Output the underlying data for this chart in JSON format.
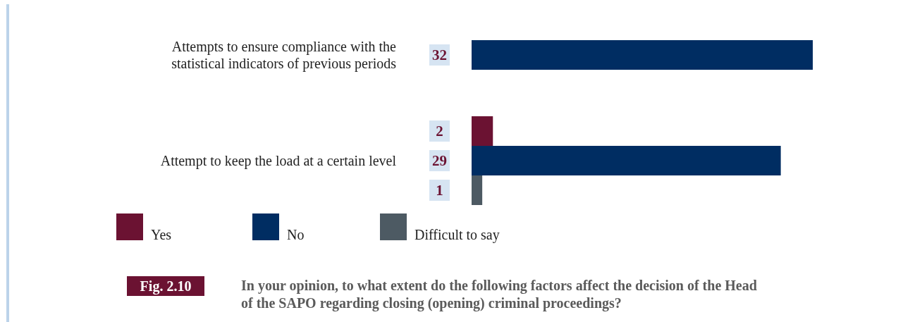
{
  "chart_data": {
    "type": "bar",
    "orientation": "horizontal",
    "title": "In your opinion, to what extent do the following factors affect the decision of the Head of the SAPO regarding closing (opening) criminal proceedings?",
    "annotations": [
      "Fig. 2.10"
    ],
    "categories": [
      "Attempts to ensure compliance with the statistical indicators of previous periods",
      "Attempt to keep the load at a certain level"
    ],
    "series": [
      {
        "name": "Yes",
        "color": "#6b1232",
        "values": [
          null,
          2
        ]
      },
      {
        "name": "No",
        "color": "#002d62",
        "values": [
          32,
          29
        ]
      },
      {
        "name": "Difficult to say",
        "color": "#4d5a63",
        "values": [
          null,
          1
        ]
      }
    ],
    "data_labels": true,
    "legend": "bottom"
  }
}
